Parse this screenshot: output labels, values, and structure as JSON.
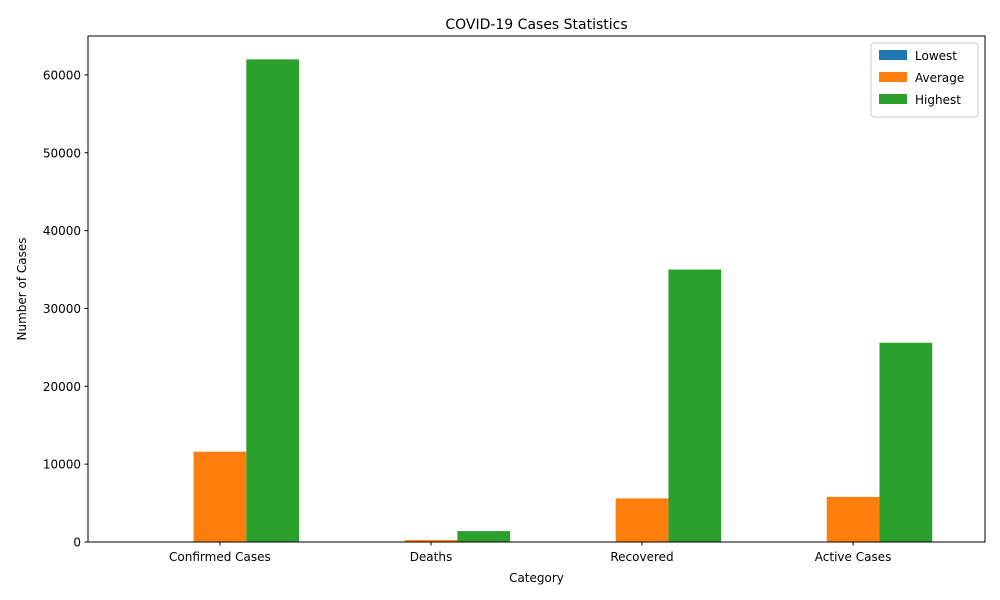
{
  "chart_data": {
    "type": "bar",
    "title": "COVID-19 Cases Statistics",
    "xlabel": "Category",
    "ylabel": "Number of Cases",
    "categories": [
      "Confirmed Cases",
      "Deaths",
      "Recovered",
      "Active Cases"
    ],
    "series": [
      {
        "name": "Lowest",
        "color": "#1f77b4",
        "values": [
          0,
          0,
          0,
          0
        ]
      },
      {
        "name": "Average",
        "color": "#ff7f0e",
        "values": [
          11600,
          250,
          5600,
          5800
        ]
      },
      {
        "name": "Highest",
        "color": "#2ca02c",
        "values": [
          62000,
          1400,
          35000,
          25600
        ]
      }
    ],
    "ylim": [
      0,
      65000
    ],
    "yticks": [
      0,
      10000,
      20000,
      30000,
      40000,
      50000,
      60000
    ],
    "grid": false,
    "legend_position": "top-right"
  }
}
